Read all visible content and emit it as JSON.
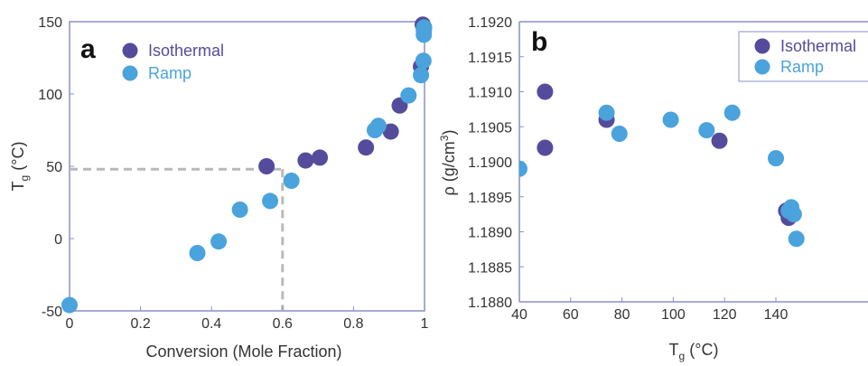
{
  "colors": {
    "isothermal": "#544c9b",
    "ramp": "#4aa3dc",
    "axis": "#8a8fc8",
    "guide": "#b9b9b9",
    "text": "#333333"
  },
  "chart_data": [
    {
      "panel": "a",
      "type": "scatter",
      "xlabel": "Conversion (Mole Fraction)",
      "ylabel_main": "T",
      "ylabel_sub": "g",
      "ylabel_unit": "(°C)",
      "xlim": [
        0,
        1
      ],
      "ylim": [
        -50,
        150
      ],
      "x_ticks": [
        0,
        0.2,
        0.4,
        0.6,
        0.8,
        1
      ],
      "x_tick_labels": [
        "0",
        "0.2",
        "0.4",
        "0.6",
        "0.8",
        "1"
      ],
      "y_ticks": [
        -50,
        0,
        50,
        100,
        150
      ],
      "y_tick_labels": [
        "-50",
        "0",
        "50",
        "100",
        "150"
      ],
      "legend_position": "top-left",
      "guide_lines": {
        "x": 0.6,
        "y": 48
      },
      "series": [
        {
          "name": "Isothermal",
          "color_key": "isothermal",
          "points": [
            [
              0.555,
              50
            ],
            [
              0.665,
              54
            ],
            [
              0.705,
              56
            ],
            [
              0.835,
              63
            ],
            [
              0.905,
              74
            ],
            [
              0.93,
              92
            ],
            [
              0.99,
              119
            ],
            [
              0.995,
              148
            ]
          ]
        },
        {
          "name": "Ramp",
          "color_key": "ramp",
          "points": [
            [
              0,
              -46
            ],
            [
              0.36,
              -10
            ],
            [
              0.42,
              -2
            ],
            [
              0.48,
              20
            ],
            [
              0.565,
              26
            ],
            [
              0.625,
              40
            ],
            [
              0.86,
              75
            ],
            [
              0.87,
              78
            ],
            [
              0.955,
              99
            ],
            [
              0.99,
              113
            ],
            [
              0.997,
              123
            ],
            [
              0.998,
              141
            ],
            [
              0.998,
              144
            ],
            [
              0.999,
              146
            ]
          ]
        }
      ]
    },
    {
      "panel": "b",
      "type": "scatter",
      "xlabel_main": "T",
      "xlabel_sub": "g",
      "xlabel_unit": "(°C)",
      "ylabel_main": "ρ",
      "ylabel_unit": "(g/cm",
      "ylabel_sup": "3",
      "ylabel_close": ")",
      "xlim": [
        40,
        150
      ],
      "ylim": [
        1.188,
        1.192
      ],
      "x_ticks": [
        40,
        60,
        80,
        100,
        120,
        140
      ],
      "x_tick_labels": [
        "40",
        "60",
        "80",
        "100",
        "120",
        "140"
      ],
      "y_ticks": [
        1.188,
        1.1885,
        1.189,
        1.1895,
        1.19,
        1.1905,
        1.191,
        1.1915,
        1.192
      ],
      "y_tick_labels": [
        "1.1880",
        "1.1885",
        "1.1890",
        "1.1895",
        "1.1900",
        "1.1905",
        "1.1910",
        "1.1915",
        "1.1920"
      ],
      "legend_position": "top-right",
      "series": [
        {
          "name": "Isothermal",
          "color_key": "isothermal",
          "points": [
            [
              50,
              1.191
            ],
            [
              50,
              1.1902
            ],
            [
              74,
              1.1906
            ],
            [
              118,
              1.1903
            ],
            [
              144,
              1.1893
            ],
            [
              145,
              1.1892
            ]
          ]
        },
        {
          "name": "Ramp",
          "color_key": "ramp",
          "points": [
            [
              40,
              1.1899
            ],
            [
              74,
              1.1907
            ],
            [
              79,
              1.1904
            ],
            [
              99,
              1.1906
            ],
            [
              113,
              1.19045
            ],
            [
              123,
              1.1907
            ],
            [
              140,
              1.19005
            ],
            [
              145,
              1.1893
            ],
            [
              146,
              1.18935
            ],
            [
              147,
              1.18925
            ],
            [
              148,
              1.1889
            ]
          ]
        }
      ]
    }
  ]
}
